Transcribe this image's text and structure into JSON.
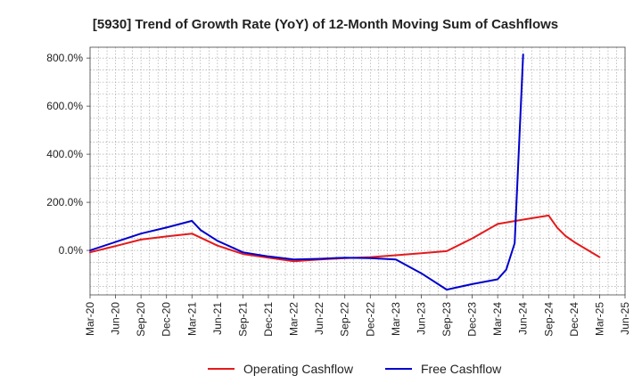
{
  "chart_data": {
    "type": "line",
    "title": "[5930]  Trend of Growth Rate (YoY) of 12-Month Moving Sum of Cashflows",
    "xlabel": "",
    "ylabel": "",
    "x_ticks": [
      "Mar-20",
      "Jun-20",
      "Sep-20",
      "Dec-20",
      "Mar-21",
      "Jun-21",
      "Sep-21",
      "Dec-21",
      "Mar-22",
      "Jun-22",
      "Sep-22",
      "Dec-22",
      "Mar-23",
      "Jun-23",
      "Sep-23",
      "Dec-23",
      "Mar-24",
      "Jun-24",
      "Sep-24",
      "Dec-24",
      "Mar-25",
      "Jun-25"
    ],
    "y_ticks": [
      {
        "value": 0,
        "label": "0.0%"
      },
      {
        "value": 200,
        "label": "200.0%"
      },
      {
        "value": 400,
        "label": "400.0%"
      },
      {
        "value": 600,
        "label": "600.0%"
      },
      {
        "value": 800,
        "label": "800.0%"
      }
    ],
    "ylim": [
      -185,
      845
    ],
    "y_unit": "%",
    "grid": true,
    "legend_position": "bottom-center",
    "series": [
      {
        "name": "Operating Cashflow",
        "color": "#e41a1c",
        "points": [
          {
            "x": "Mar-20",
            "y": -8
          },
          {
            "x": "Jun-20",
            "y": 18
          },
          {
            "x": "Sep-20",
            "y": 45
          },
          {
            "x": "Dec-20",
            "y": 58
          },
          {
            "x": "Mar-21",
            "y": 70
          },
          {
            "x": "Jun-21",
            "y": 20
          },
          {
            "x": "Sep-21",
            "y": -15
          },
          {
            "x": "Dec-21",
            "y": -30
          },
          {
            "x": "Mar-22",
            "y": -45
          },
          {
            "x": "Jun-22",
            "y": -38
          },
          {
            "x": "Sep-22",
            "y": -32
          },
          {
            "x": "Dec-22",
            "y": -28
          },
          {
            "x": "Mar-23",
            "y": -20
          },
          {
            "x": "Jun-23",
            "y": -12
          },
          {
            "x": "Sep-23",
            "y": -3
          },
          {
            "x": "Dec-23",
            "y": 50
          },
          {
            "x": "Mar-24",
            "y": 110
          },
          {
            "x": "Jun-24",
            "y": 128
          },
          {
            "x": "Sep-24",
            "y": 145
          },
          {
            "x": "Oct-24",
            "y": 95
          },
          {
            "x": "Nov-24",
            "y": 60
          },
          {
            "x": "Dec-24",
            "y": 35
          },
          {
            "x": "Mar-25",
            "y": -28
          }
        ]
      },
      {
        "name": "Free Cashflow",
        "color": "#0000cc",
        "points": [
          {
            "x": "Mar-20",
            "y": 0
          },
          {
            "x": "Jun-20",
            "y": 35
          },
          {
            "x": "Sep-20",
            "y": 70
          },
          {
            "x": "Dec-20",
            "y": 95
          },
          {
            "x": "Mar-21",
            "y": 123
          },
          {
            "x": "Apr-21",
            "y": 85
          },
          {
            "x": "Jun-21",
            "y": 40
          },
          {
            "x": "Sep-21",
            "y": -8
          },
          {
            "x": "Dec-21",
            "y": -25
          },
          {
            "x": "Mar-22",
            "y": -38
          },
          {
            "x": "Jun-22",
            "y": -35
          },
          {
            "x": "Sep-22",
            "y": -30
          },
          {
            "x": "Dec-22",
            "y": -32
          },
          {
            "x": "Mar-23",
            "y": -38
          },
          {
            "x": "Jun-23",
            "y": -95
          },
          {
            "x": "Sep-23",
            "y": -163
          },
          {
            "x": "Dec-23",
            "y": -140
          },
          {
            "x": "Mar-24",
            "y": -120
          },
          {
            "x": "Apr-24",
            "y": -80
          },
          {
            "x": "May-24",
            "y": 30
          },
          {
            "x": "Jun-24",
            "y": 815
          }
        ]
      }
    ]
  }
}
